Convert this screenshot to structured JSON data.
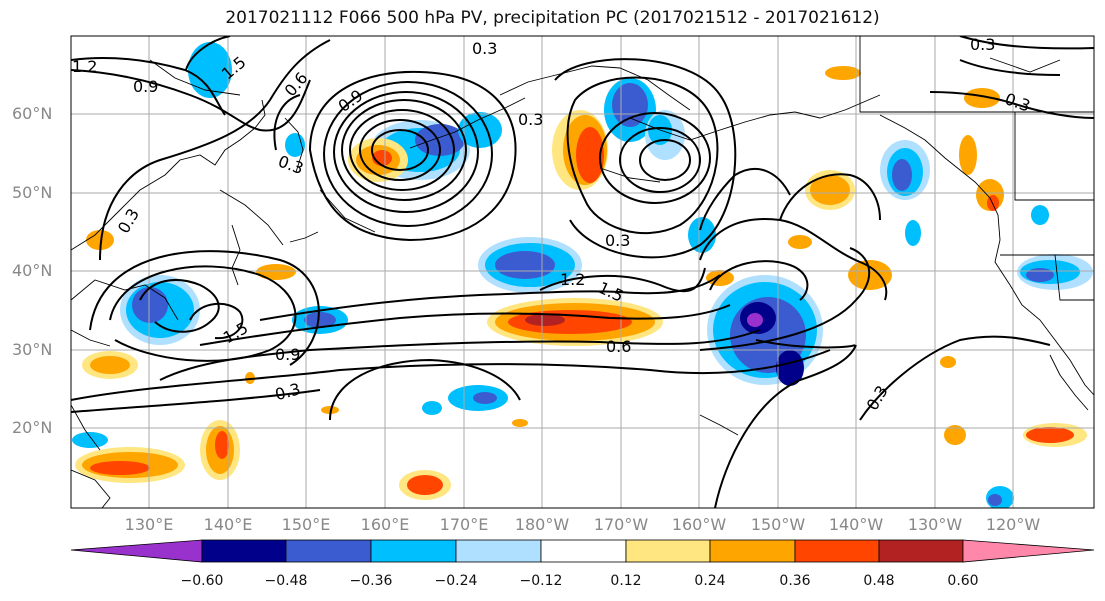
{
  "title": "2017021112 F066 500 hPa PV, precipitation PC (2017021512 - 2017021612)",
  "lat_labels": [
    "60°N",
    "50°N",
    "40°N",
    "30°N",
    "20°N"
  ],
  "lon_labels": [
    "130°E",
    "140°E",
    "150°E",
    "160°E",
    "170°E",
    "180°W",
    "170°W",
    "160°W",
    "150°W",
    "140°W",
    "130°W",
    "120°W"
  ],
  "colorbar": {
    "tick_labels": [
      "−0.60",
      "−0.48",
      "−0.36",
      "−0.24",
      "−0.12",
      "0.12",
      "0.24",
      "0.36",
      "0.48",
      "0.60"
    ],
    "colors": [
      "#9932CC",
      "#00008B",
      "#3A5CD0",
      "#00BFFF",
      "#B0E0FF",
      "#FFFFFF",
      "#FFE680",
      "#FFA500",
      "#FF4500",
      "#B22222",
      "#FF88AA"
    ]
  },
  "contour_labels": [
    "1.2",
    "0.9",
    "1.5",
    "0.6",
    "0.3",
    "0.9",
    "0.3",
    "0.3",
    "0.3",
    "0.3",
    "0.3",
    "1.2",
    "1.5",
    "0.6",
    "1.5",
    "0.9",
    "0.3",
    "0.3",
    "0.3"
  ]
}
